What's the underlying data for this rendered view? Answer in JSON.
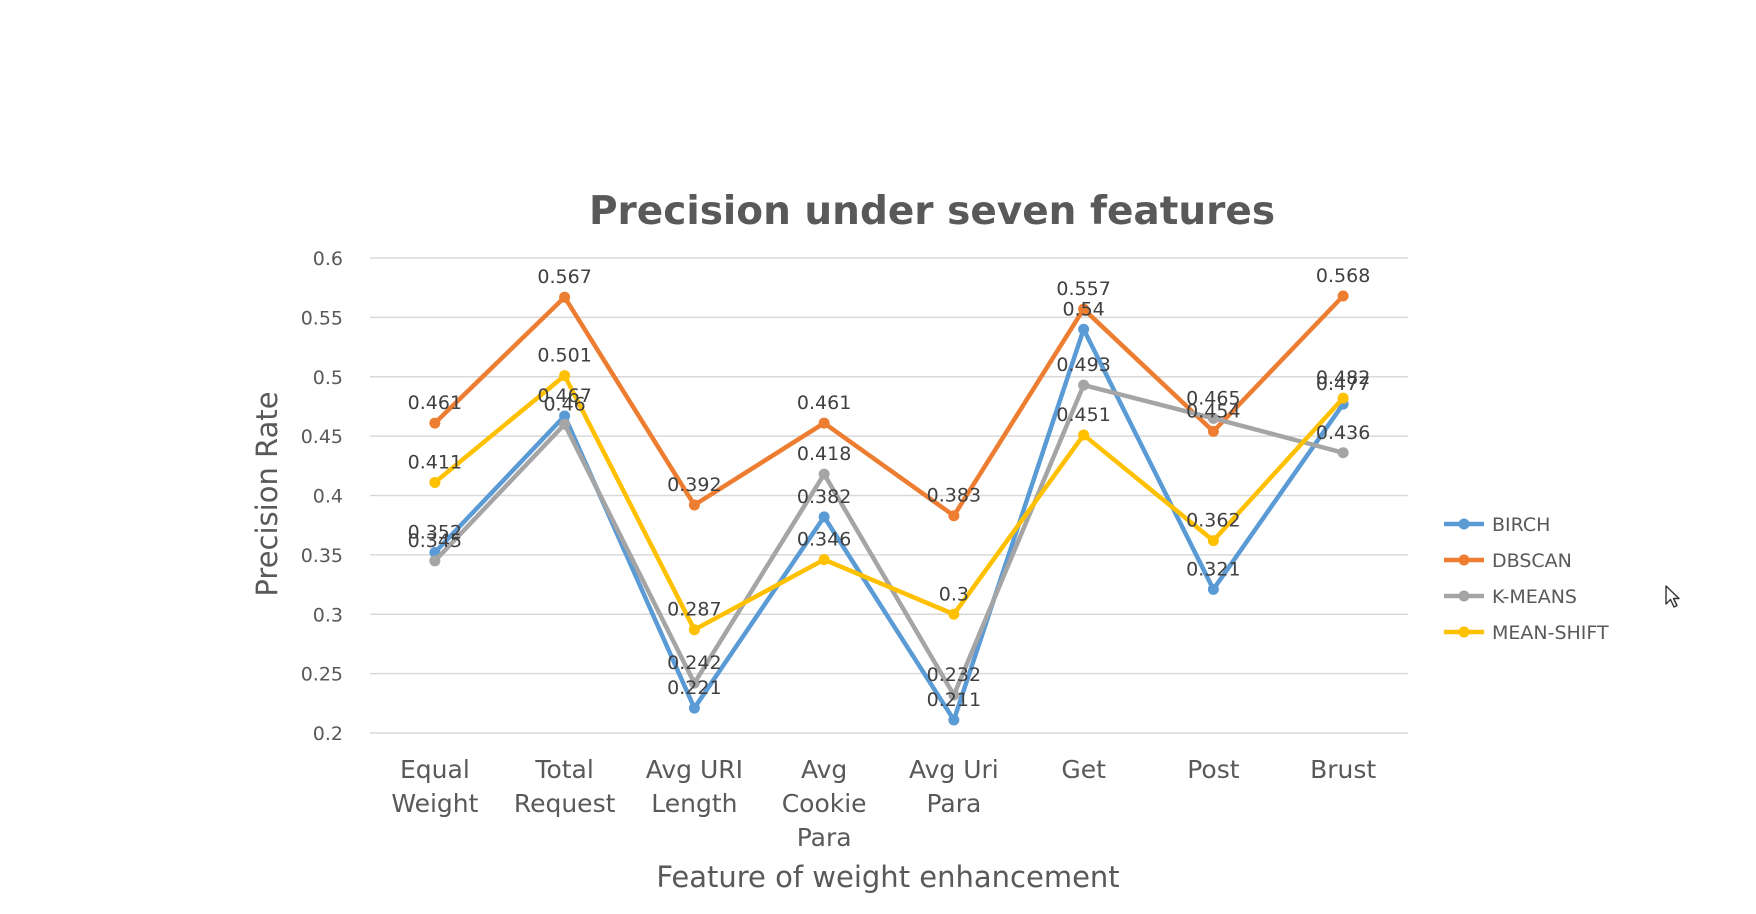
{
  "chart_data": {
    "type": "line",
    "title": "Precision under seven features",
    "xlabel": "Feature of weight enhancement",
    "ylabel": "Precision Rate",
    "ylim": [
      0.2,
      0.6
    ],
    "yticks": [
      "0.2",
      "0.25",
      "0.3",
      "0.35",
      "0.4",
      "0.45",
      "0.5",
      "0.55",
      "0.6"
    ],
    "categories": [
      [
        "Equal",
        "Weight"
      ],
      [
        "Total",
        "Request"
      ],
      [
        "Avg URI",
        "Length"
      ],
      [
        "Avg",
        "Cookie",
        "Para"
      ],
      [
        "Avg Uri",
        "Para"
      ],
      [
        "Get"
      ],
      [
        "Post"
      ],
      [
        "Brust"
      ]
    ],
    "series": [
      {
        "name": "BIRCH",
        "color": "#5B9BD5",
        "values": [
          0.352,
          0.467,
          0.221,
          0.382,
          0.211,
          0.54,
          0.321,
          0.477
        ],
        "labels": [
          "0.352",
          "0.467",
          "0.221",
          "0.382",
          "0.211",
          "0.54",
          "0.321",
          "0.477"
        ]
      },
      {
        "name": "DBSCAN",
        "color": "#ED7D31",
        "values": [
          0.461,
          0.567,
          0.392,
          0.461,
          0.383,
          0.557,
          0.454,
          0.568
        ],
        "labels": [
          "0.461",
          "0.567",
          "0.392",
          "0.461",
          "0.383",
          "0.557",
          "0.454",
          "0.568"
        ]
      },
      {
        "name": "K-MEANS",
        "color": "#A5A5A5",
        "values": [
          0.345,
          0.46,
          0.242,
          0.418,
          0.232,
          0.493,
          0.465,
          0.436
        ],
        "labels": [
          "0.345",
          "0.46",
          "0.242",
          "0.418",
          "0.232",
          "0.493",
          "0.465",
          "0.436"
        ]
      },
      {
        "name": "MEAN-SHIFT",
        "color": "#FFC000",
        "values": [
          0.411,
          0.501,
          0.287,
          0.346,
          0.3,
          0.451,
          0.362,
          0.482
        ],
        "labels": [
          "0.411",
          "0.501",
          "0.287",
          "0.346",
          "0.3",
          "0.451",
          "0.362",
          "0.482"
        ]
      }
    ],
    "grid": true,
    "legend_position": "right"
  }
}
